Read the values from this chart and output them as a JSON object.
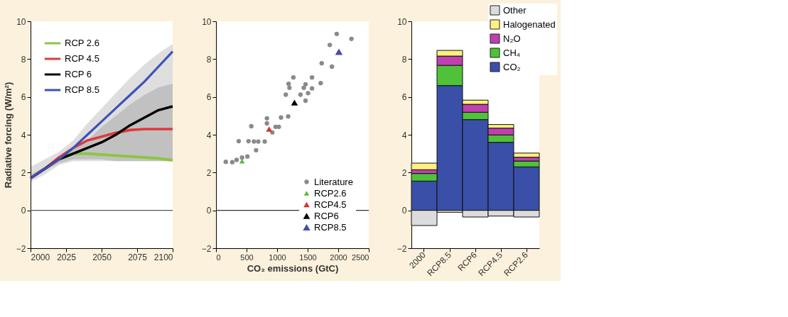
{
  "chart_data": [
    {
      "type": "line",
      "ylabel": "Radiative forcing (W/m²)",
      "x": [
        2000,
        2010,
        2020,
        2030,
        2040,
        2050,
        2060,
        2070,
        2080,
        2090,
        2100
      ],
      "xlim": [
        2000,
        2100
      ],
      "xticks": [
        2000,
        2025,
        2050,
        2075,
        2100
      ],
      "ylim": [
        -2,
        10
      ],
      "yticks": [
        -2,
        0,
        2,
        4,
        6,
        8,
        10
      ],
      "legend": "top left",
      "grid": false,
      "line_style": "solid",
      "ref_lines": [
        {
          "axis": "y",
          "value": 0,
          "color": "#555555"
        }
      ],
      "series": [
        {
          "name": "RCP 2.6",
          "color": "#8cc63f",
          "values": [
            null,
            null,
            2.7,
            3.0,
            3.0,
            2.95,
            2.9,
            2.85,
            2.8,
            2.75,
            2.65
          ]
        },
        {
          "name": "RCP 4.5",
          "color": "#e03a3a",
          "values": [
            1.7,
            2.2,
            2.8,
            3.3,
            3.7,
            3.9,
            4.1,
            4.25,
            4.3,
            4.3,
            4.3
          ]
        },
        {
          "name": "RCP 6",
          "color": "#000000",
          "values": [
            1.7,
            2.2,
            2.7,
            3.0,
            3.3,
            3.6,
            4.0,
            4.5,
            4.9,
            5.3,
            5.5
          ],
          "lower": [
            1.7,
            2.1,
            2.5,
            2.7,
            2.7,
            2.7,
            2.6,
            2.6,
            2.6,
            2.6,
            2.6
          ],
          "upper": [
            1.9,
            2.3,
            2.8,
            3.2,
            3.7,
            4.4,
            5.0,
            5.6,
            6.1,
            6.5,
            6.7
          ]
        },
        {
          "name": "RCP 8.5",
          "color": "#4050b8",
          "values": [
            1.7,
            2.2,
            2.7,
            3.3,
            4.0,
            4.7,
            5.4,
            6.1,
            6.8,
            7.6,
            8.4
          ],
          "lower": [
            1.5,
            1.9,
            2.4,
            2.6,
            2.6,
            2.6,
            2.6,
            2.6,
            2.6,
            2.6,
            2.6
          ],
          "upper": [
            2.3,
            2.7,
            3.1,
            3.7,
            4.6,
            5.4,
            6.2,
            7.0,
            7.7,
            8.3,
            8.8
          ]
        }
      ]
    },
    {
      "type": "scatter",
      "xlabel": "CO₂ emissions (GtC)",
      "xlim": [
        0,
        2500
      ],
      "xticks": [
        0,
        500,
        1000,
        1500,
        2000,
        2500
      ],
      "ylim": [
        -2,
        10
      ],
      "yticks": [
        -2,
        0,
        2,
        4,
        6,
        8,
        10
      ],
      "legend": "bottom right",
      "grid": false,
      "ref_lines": [
        {
          "axis": "y",
          "value": 0,
          "color": "#333333"
        }
      ],
      "series": [
        {
          "name": "Literature",
          "color": "#8a8a8a",
          "marker": "circle",
          "x": [
            1975,
            2216,
            1862,
            1897,
            1730,
            1713,
            1571,
            1266,
            1188,
            1202,
            1142,
            1465,
            1436,
            1383,
            1507,
            1571,
            1465,
            1181,
            1064,
            1028,
            975,
            833,
            833,
            922,
            578,
            372,
            532,
            621,
            691,
            797,
            656,
            160,
            266,
            514,
            426,
            337
          ],
          "values": [
            9.33,
            9.07,
            8.75,
            7.6,
            7.78,
            6.73,
            7.03,
            7.03,
            6.69,
            6.48,
            6.12,
            6.67,
            6.48,
            6.12,
            6.2,
            6.45,
            5.8,
            4.97,
            4.91,
            4.42,
            4.42,
            4.87,
            4.6,
            4.12,
            4.45,
            3.66,
            3.66,
            3.64,
            3.64,
            3.64,
            3.18,
            2.57,
            2.55,
            2.85,
            2.79,
            2.67
          ]
        },
        {
          "name": "RCP2.6",
          "color": "#5cb83a",
          "marker": "triangle",
          "x": [
            426
          ],
          "values": [
            2.6
          ]
        },
        {
          "name": "RCP4.5",
          "color": "#d93030",
          "marker": "triangle",
          "x": [
            869
          ],
          "values": [
            4.3
          ]
        },
        {
          "name": "RCP6",
          "color": "#000000",
          "marker": "triangle",
          "x": [
            1284
          ],
          "values": [
            5.7
          ]
        },
        {
          "name": "RCP8.5",
          "color": "#4a4aa8",
          "marker": "triangle",
          "x": [
            2011
          ],
          "values": [
            8.39
          ]
        }
      ]
    },
    {
      "type": "bar",
      "stacked": true,
      "categories": [
        "2000",
        "RCP8.5",
        "RCP6",
        "RCP4.5",
        "RCP2.6"
      ],
      "ylim": [
        -2,
        10
      ],
      "yticks": [
        -2,
        0,
        2,
        4,
        6,
        8,
        10
      ],
      "legend": "top right",
      "grid": false,
      "series": [
        {
          "name": "CO₂",
          "color": "#3a4fa8",
          "values": [
            1.55,
            6.6,
            4.8,
            3.6,
            2.3
          ]
        },
        {
          "name": "CH₄",
          "color": "#4fc23a",
          "values": [
            0.4,
            1.07,
            0.39,
            0.39,
            0.31
          ]
        },
        {
          "name": "N₂O",
          "color": "#c040b0",
          "values": [
            0.2,
            0.49,
            0.42,
            0.36,
            0.2
          ]
        },
        {
          "name": "Halogenated",
          "color": "#fff080",
          "values": [
            0.35,
            0.3,
            0.22,
            0.19,
            0.22
          ]
        },
        {
          "name": "Other",
          "color": "#dcdcdc",
          "values": [
            -0.8,
            -0.1,
            -0.35,
            -0.3,
            -0.35
          ]
        }
      ]
    }
  ]
}
